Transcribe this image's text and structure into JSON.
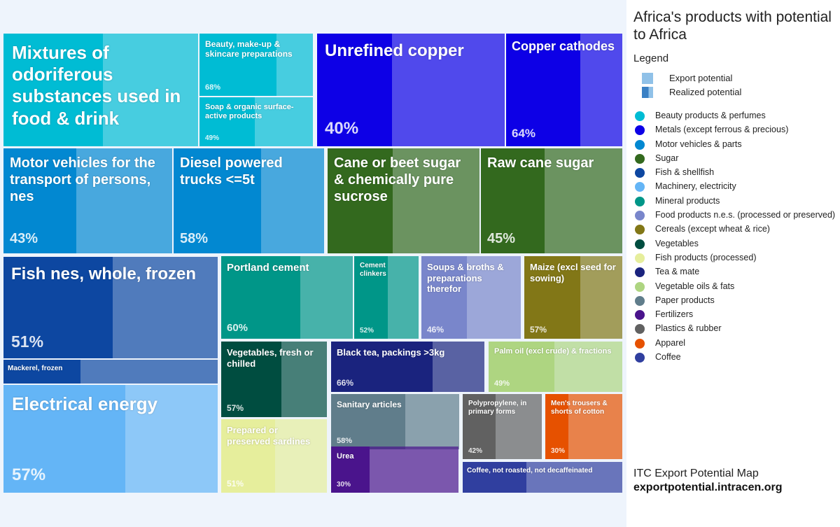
{
  "chart_data": {
    "type": "treemap",
    "title": "Africa's products with potential to Africa",
    "legend": {
      "title": "Legend",
      "export_label": "Export potential",
      "realized_label": "Realized potential"
    },
    "sectors": [
      {
        "name": "Beauty products & perfumes",
        "color": "#00bcd4"
      },
      {
        "name": "Metals (except ferrous & precious)",
        "color": "#0d00e6"
      },
      {
        "name": "Motor vehicles & parts",
        "color": "#0288d1"
      },
      {
        "name": "Sugar",
        "color": "#33691e"
      },
      {
        "name": "Fish & shellfish",
        "color": "#0d47a1"
      },
      {
        "name": "Machinery, electricity",
        "color": "#64b5f6"
      },
      {
        "name": "Mineral products",
        "color": "#009688"
      },
      {
        "name": "Food products n.e.s. (processed or preserved)",
        "color": "#7986cb"
      },
      {
        "name": "Cereals (except wheat & rice)",
        "color": "#827717"
      },
      {
        "name": "Vegetables",
        "color": "#004d40"
      },
      {
        "name": "Fish products (processed)",
        "color": "#e6ee9c"
      },
      {
        "name": "Tea & mate",
        "color": "#1a237e"
      },
      {
        "name": "Vegetable oils & fats",
        "color": "#aed581"
      },
      {
        "name": "Paper products",
        "color": "#607d8b"
      },
      {
        "name": "Fertilizers",
        "color": "#4a148c"
      },
      {
        "name": "Plastics & rubber",
        "color": "#616161"
      },
      {
        "name": "Apparel",
        "color": "#e65100"
      },
      {
        "name": "Coffee",
        "color": "#303f9f"
      }
    ],
    "products": [
      {
        "name": "Mixtures of odoriferous substances used in food & drink",
        "sector": "Beauty products & perfumes",
        "realized_pct": 51,
        "pct_label": ""
      },
      {
        "name": "Beauty, make-up & skincare preparations",
        "sector": "Beauty products & perfumes",
        "realized_pct": 68,
        "pct_label": "68%"
      },
      {
        "name": "Soap & organic surface-active products",
        "sector": "Beauty products & perfumes",
        "realized_pct": 49,
        "pct_label": "49%"
      },
      {
        "name": "Unrefined copper",
        "sector": "Metals (except ferrous & precious)",
        "realized_pct": 40,
        "pct_label": "40%"
      },
      {
        "name": "Copper cathodes",
        "sector": "Metals (except ferrous & precious)",
        "realized_pct": 64,
        "pct_label": "64%"
      },
      {
        "name": "Motor vehicles for the transport of persons, nes",
        "sector": "Motor vehicles & parts",
        "realized_pct": 43,
        "pct_label": "43%"
      },
      {
        "name": "Diesel powered trucks <=5t",
        "sector": "Motor vehicles & parts",
        "realized_pct": 58,
        "pct_label": "58%"
      },
      {
        "name": "Cane or beet sugar & chemically pure sucrose",
        "sector": "Sugar",
        "realized_pct": 43,
        "pct_label": ""
      },
      {
        "name": "Raw cane sugar",
        "sector": "Sugar",
        "realized_pct": 45,
        "pct_label": "45%"
      },
      {
        "name": "Fish nes, whole, frozen",
        "sector": "Fish & shellfish",
        "realized_pct": 51,
        "pct_label": "51%"
      },
      {
        "name": "Mackerel, frozen",
        "sector": "Fish & shellfish",
        "realized_pct": 36,
        "pct_label": ""
      },
      {
        "name": "Electrical energy",
        "sector": "Machinery, electricity",
        "realized_pct": 57,
        "pct_label": "57%"
      },
      {
        "name": "Portland cement",
        "sector": "Mineral products",
        "realized_pct": 60,
        "pct_label": "60%"
      },
      {
        "name": "Cement clinkers",
        "sector": "Mineral products",
        "realized_pct": 52,
        "pct_label": "52%"
      },
      {
        "name": "Soups & broths & preparations therefor",
        "sector": "Food products n.e.s. (processed or preserved)",
        "realized_pct": 46,
        "pct_label": "46%"
      },
      {
        "name": "Maize (excl seed for sowing)",
        "sector": "Cereals (except wheat & rice)",
        "realized_pct": 57,
        "pct_label": "57%"
      },
      {
        "name": "Vegetables, fresh or chilled",
        "sector": "Vegetables",
        "realized_pct": 57,
        "pct_label": "57%"
      },
      {
        "name": "Black tea, packings >3kg",
        "sector": "Tea & mate",
        "realized_pct": 66,
        "pct_label": "66%"
      },
      {
        "name": "Palm oil (excl crude) & fractions",
        "sector": "Vegetable oils & fats",
        "realized_pct": 49,
        "pct_label": "49%"
      },
      {
        "name": "Prepared or preserved sardines",
        "sector": "Fish products (processed)",
        "realized_pct": 51,
        "pct_label": "51%"
      },
      {
        "name": "Sanitary articles",
        "sector": "Paper products",
        "realized_pct": 58,
        "pct_label": "58%"
      },
      {
        "name": "Polypropylene, in primary forms",
        "sector": "Plastics & rubber",
        "realized_pct": 42,
        "pct_label": "42%"
      },
      {
        "name": "Men's trousers & shorts of cotton",
        "sector": "Apparel",
        "realized_pct": 30,
        "pct_label": "30%"
      },
      {
        "name": "Urea",
        "sector": "Fertilizers",
        "realized_pct": 30,
        "pct_label": "30%"
      },
      {
        "name": "Coffee, not roasted, not decaffeinated",
        "sector": "Coffee",
        "realized_pct": 40,
        "pct_label": ""
      }
    ]
  },
  "credit": {
    "line1": "ITC Export Potential Map",
    "line2": "exportpotential.intracen.org"
  }
}
